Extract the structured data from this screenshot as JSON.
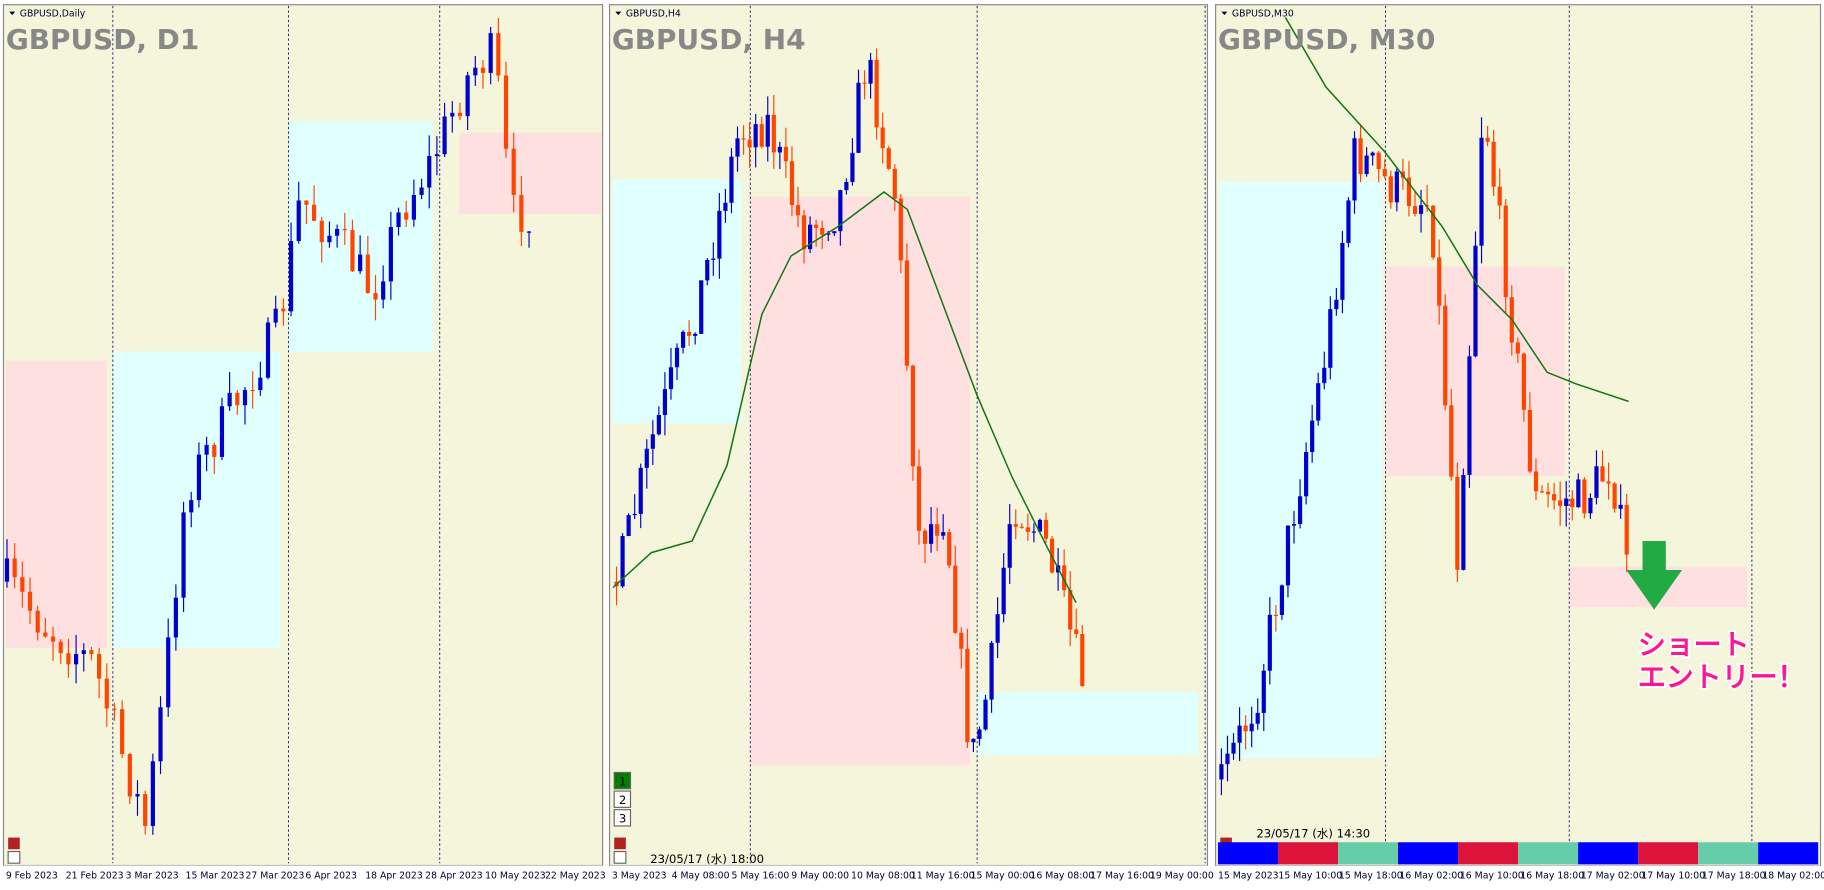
{
  "panels": [
    {
      "label": "GBPUSD,Daily",
      "title": "GBPUSD, D1",
      "x_labels": [
        "9 Feb 2023",
        "21 Feb 2023",
        "3 Mar 2023",
        "15 Mar 2023",
        "27 Mar 2023",
        "6 Apr 2023",
        "18 Apr 2023",
        "28 Apr 2023",
        "10 May 2023",
        "22 May 2023"
      ]
    },
    {
      "label": "GBPUSD,H4",
      "title": "GBPUSD, H4",
      "timestamp": "23/05/17 (水) 18:00",
      "buttons": [
        "1",
        "2",
        "3"
      ],
      "x_labels": [
        "3 May 2023",
        "4 May 08:00",
        "5 May 16:00",
        "9 May 00:00",
        "10 May 08:00",
        "11 May 16:00",
        "15 May 00:00",
        "16 May 08:00",
        "17 May 16:00",
        "19 May 00:00"
      ]
    },
    {
      "label": "GBPUSD,M30",
      "title": "GBPUSD, M30",
      "timestamp": "23/05/17 (水) 14:30",
      "x_labels": [
        "15 May 2023",
        "15 May 10:00",
        "15 May 18:00",
        "16 May 02:00",
        "16 May 10:00",
        "16 May 18:00",
        "17 May 02:00",
        "17 May 10:00",
        "17 May 18:00",
        "18 May 02:00"
      ]
    }
  ],
  "annotation": [
    "ショート",
    "エントリー！"
  ]
}
